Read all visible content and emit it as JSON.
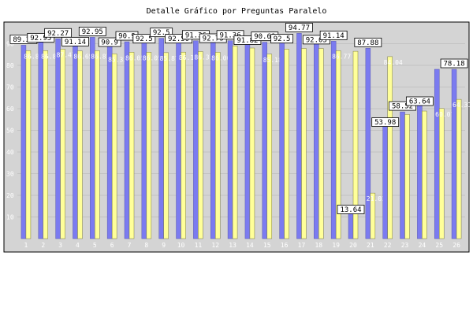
{
  "chart_data": {
    "type": "bar",
    "title": "Detalle Gráfico por Preguntas Paralelo",
    "xlabel": "",
    "ylabel": "",
    "ylim": [
      0,
      100
    ],
    "y_ticks": [
      10,
      20,
      30,
      40,
      50,
      60,
      70,
      80,
      90
    ],
    "grid": true,
    "categories": [
      "1",
      "2",
      "3",
      "4",
      "5",
      "6",
      "7",
      "8",
      "9",
      "10",
      "11",
      "12",
      "13",
      "14",
      "15",
      "16",
      "17",
      "18",
      "19",
      "20",
      "21",
      "22",
      "23",
      "24",
      "25",
      "26"
    ],
    "series": [
      {
        "color": "#7b7bf0",
        "values": [
          89.31,
          92.95,
          92.27,
          91.14,
          92.95,
          90.9,
          90.9,
          92.5,
          92.5,
          92.5,
          91.36,
          92.73,
          91.36,
          91.82,
          90.68,
          92.5,
          94.77,
          92.05,
          91.14,
          13.64,
          87.88,
          53.98,
          58.52,
          63.64,
          78.18,
          78.18
        ],
        "value_labels": [
          "89.31",
          "92.95",
          "92.27",
          "91.14",
          "92.95",
          "90.9",
          "90.9",
          "92.5",
          "92.5",
          "92.50",
          "91.36",
          "92.73",
          "91.36",
          "91.82",
          "90.68",
          "92.5",
          "94.77",
          "92.05",
          "91.14",
          "13.64",
          "87.88",
          "53.98",
          "58.52",
          "63.64",
          "",
          "78.18"
        ]
      },
      {
        "color": "#ffff99",
        "values": [
          86.8,
          86.8,
          87.47,
          86.65,
          86.81,
          85.33,
          86.05,
          86.05,
          85.87,
          86.1,
          86.37,
          86.06,
          89,
          88,
          85.18,
          87.5,
          87.8,
          87.8,
          86.77,
          86.5,
          21.03,
          84.04,
          57.3,
          58.9,
          60.07,
          64.31
        ],
        "value_labels": [
          "86.8",
          "86.8",
          "87.47",
          "86.65",
          "86.81",
          "85.33",
          "86.05",
          "86.05",
          "85.87",
          "86.1",
          "86.37",
          "86.06",
          "",
          "",
          "85.18",
          "",
          "",
          "",
          "86.77",
          "",
          "21.03",
          "84.04",
          "",
          "",
          "60.07",
          "64.31"
        ]
      }
    ]
  }
}
